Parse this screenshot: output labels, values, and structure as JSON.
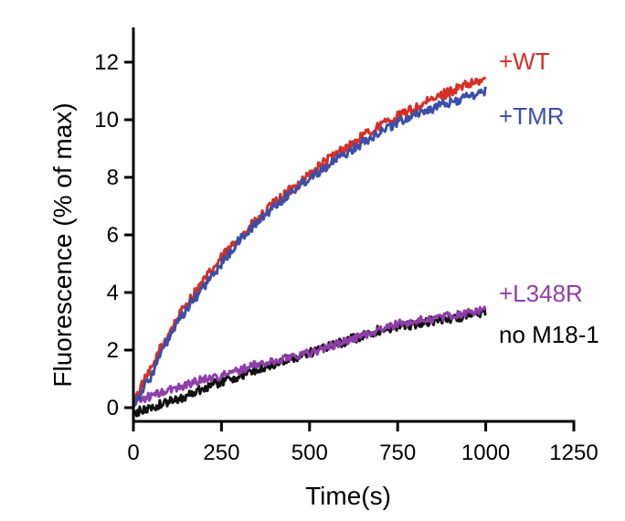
{
  "chart_data": {
    "type": "line",
    "title": "",
    "xlabel": "Time(s)",
    "ylabel": "Fluorescence (% of max)",
    "xlim": [
      0,
      1250
    ],
    "ylim": [
      0,
      13
    ],
    "xticks": [
      0,
      250,
      500,
      750,
      1000,
      1250
    ],
    "yticks": [
      0,
      2,
      4,
      6,
      8,
      10,
      12
    ],
    "grid": false,
    "legend_position": "right, inline at line ends",
    "series": [
      {
        "name": "+WT",
        "color": "#d62f27",
        "x": [
          0,
          25,
          50,
          75,
          100,
          150,
          200,
          250,
          300,
          350,
          400,
          450,
          500,
          550,
          600,
          650,
          700,
          750,
          800,
          850,
          900,
          950,
          1000
        ],
        "y": [
          0.2,
          0.8,
          1.3,
          2.0,
          2.6,
          3.6,
          4.4,
          5.2,
          5.9,
          6.5,
          7.1,
          7.6,
          8.1,
          8.6,
          9.0,
          9.4,
          9.8,
          10.1,
          10.4,
          10.7,
          11.0,
          11.2,
          11.4
        ]
      },
      {
        "name": "+TMR",
        "color": "#3a4fa8",
        "x": [
          0,
          25,
          50,
          75,
          100,
          150,
          200,
          250,
          300,
          350,
          400,
          450,
          500,
          550,
          600,
          650,
          700,
          750,
          800,
          850,
          900,
          950,
          1000
        ],
        "y": [
          0.1,
          0.6,
          1.1,
          1.8,
          2.4,
          3.4,
          4.2,
          5.0,
          5.8,
          6.4,
          7.0,
          7.5,
          8.0,
          8.4,
          8.8,
          9.2,
          9.6,
          9.9,
          10.2,
          10.4,
          10.6,
          10.8,
          11.0
        ]
      },
      {
        "name": "+L348R",
        "color": "#8e3fa8",
        "x": [
          0,
          25,
          50,
          100,
          150,
          200,
          250,
          300,
          350,
          400,
          450,
          500,
          550,
          600,
          650,
          700,
          750,
          800,
          850,
          900,
          950,
          1000
        ],
        "y": [
          0.3,
          0.3,
          0.4,
          0.6,
          0.8,
          1.0,
          1.1,
          1.3,
          1.5,
          1.6,
          1.8,
          1.9,
          2.1,
          2.3,
          2.5,
          2.7,
          2.9,
          3.0,
          3.1,
          3.2,
          3.3,
          3.4
        ]
      },
      {
        "name": "no M18-1",
        "color": "#111111",
        "x": [
          0,
          25,
          50,
          100,
          150,
          200,
          250,
          300,
          350,
          400,
          450,
          500,
          550,
          600,
          650,
          700,
          750,
          800,
          850,
          900,
          950,
          1000
        ],
        "y": [
          -0.2,
          -0.1,
          0.0,
          0.2,
          0.4,
          0.7,
          0.9,
          1.1,
          1.3,
          1.5,
          1.7,
          1.9,
          2.1,
          2.3,
          2.5,
          2.7,
          2.8,
          2.9,
          3.0,
          3.1,
          3.2,
          3.3
        ]
      }
    ]
  }
}
